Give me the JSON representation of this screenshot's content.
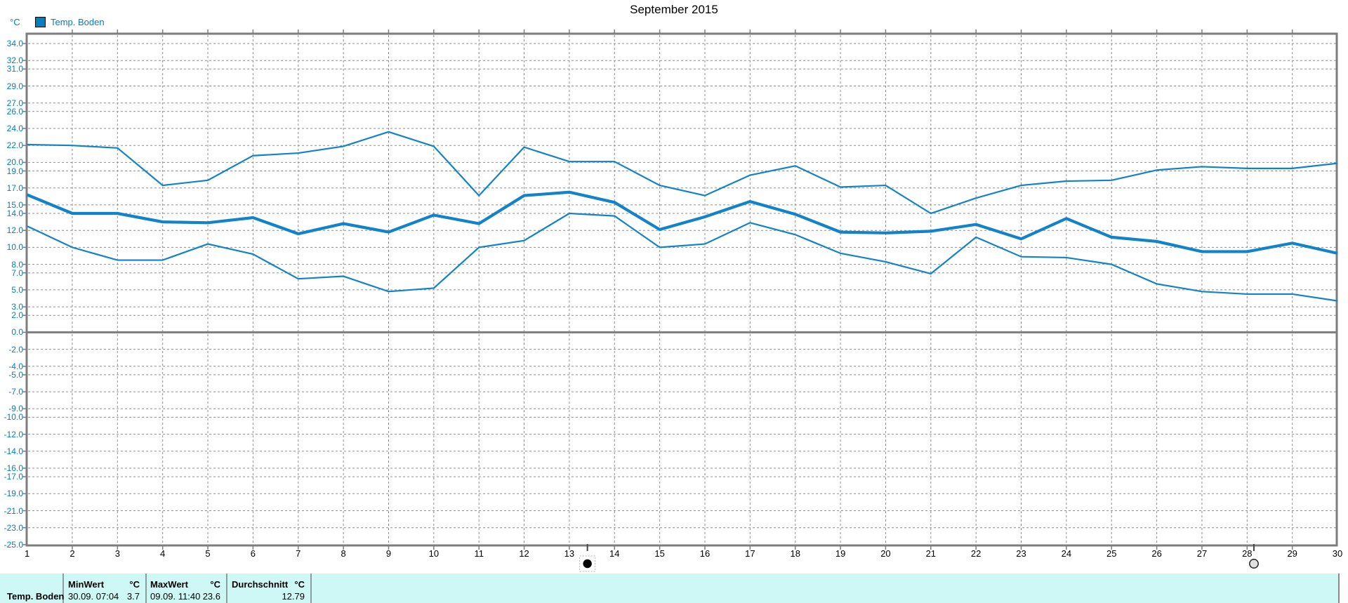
{
  "title": "September 2015",
  "legend": {
    "label": "Temp. Boden",
    "color": "#0080c0"
  },
  "y_axis": {
    "unit": "°C",
    "labels": [
      "34.0",
      "32.0",
      "31.0",
      "29.0",
      "27.0",
      "26.0",
      "24.0",
      "22.0",
      "20.0",
      "19.0",
      "17.0",
      "15.0",
      "14.0",
      "12.0",
      "10.0",
      "8.0",
      "7.0",
      "5.0",
      "3.0",
      "2.0",
      "0.0",
      "-2.0",
      "-4.0",
      "-5.0",
      "-7.0",
      "-9.0",
      "-10.0",
      "-12.0",
      "-14.0",
      "-16.0",
      "-17.0",
      "-19.0",
      "-21.0",
      "-23.0",
      "-25.0"
    ]
  },
  "x_axis": {
    "labels": [
      "1",
      "2",
      "3",
      "4",
      "5",
      "6",
      "7",
      "8",
      "9",
      "10",
      "11",
      "12",
      "13",
      "14",
      "15",
      "16",
      "17",
      "18",
      "19",
      "20",
      "21",
      "22",
      "23",
      "24",
      "25",
      "26",
      "27",
      "28",
      "29",
      "30"
    ]
  },
  "chart_data": {
    "type": "line",
    "title": "September 2015",
    "ylabel": "°C",
    "xlim": [
      1,
      30
    ],
    "ylim": [
      -25,
      35.2
    ],
    "grid": true,
    "x": [
      1,
      2,
      3,
      4,
      5,
      6,
      7,
      8,
      9,
      10,
      11,
      12,
      13,
      14,
      15,
      16,
      17,
      18,
      19,
      20,
      21,
      22,
      23,
      24,
      25,
      26,
      27,
      28,
      29,
      30
    ],
    "series": [
      {
        "id": "daily-max",
        "thick": false,
        "values": [
          22.1,
          22.0,
          21.7,
          17.3,
          17.9,
          20.8,
          21.1,
          21.9,
          23.6,
          21.9,
          16.1,
          21.8,
          20.1,
          20.1,
          17.3,
          16.1,
          18.5,
          19.6,
          17.1,
          17.3,
          14.0,
          15.8,
          17.3,
          17.8,
          17.9,
          19.1,
          19.5,
          19.3,
          19.3,
          19.9
        ]
      },
      {
        "id": "daily-average",
        "thick": true,
        "values": [
          16.2,
          14.0,
          14.0,
          13.0,
          12.9,
          13.5,
          11.6,
          12.8,
          11.8,
          13.8,
          12.8,
          16.1,
          16.5,
          15.3,
          12.1,
          13.6,
          15.4,
          13.9,
          11.8,
          11.7,
          11.9,
          12.7,
          11.0,
          13.4,
          11.2,
          10.7,
          9.5,
          9.5,
          10.5,
          9.3
        ]
      },
      {
        "id": "daily-min",
        "thick": false,
        "values": [
          12.5,
          10.0,
          8.5,
          8.5,
          10.4,
          9.2,
          6.3,
          6.6,
          4.8,
          5.2,
          10.0,
          10.8,
          14.0,
          13.7,
          10.0,
          10.4,
          12.9,
          11.5,
          9.3,
          8.3,
          6.9,
          11.2,
          8.9,
          8.8,
          8.0,
          5.7,
          4.8,
          4.5,
          4.5,
          3.7
        ]
      }
    ],
    "line_color": "#1283c8",
    "moon_markers": [
      {
        "day": 13.4,
        "phase": "new-moon"
      },
      {
        "day": 28.15,
        "phase": "full-moon"
      }
    ]
  },
  "summary_table": {
    "row_label": "Temp. Boden",
    "min": {
      "header": "MinWert",
      "unit": "°C",
      "datetime": "30.09.  07:04",
      "value": "3.7"
    },
    "max": {
      "header": "MaxWert",
      "unit": "°C",
      "datetime": "09.09.  11:40",
      "value": "23.6"
    },
    "avg": {
      "header": "Durchschnitt",
      "unit": "°C",
      "value": "12.79"
    }
  },
  "colors": {
    "axis_text": "#0080c0",
    "line": "#1283c8",
    "grid": "#8f8f8f",
    "frame": "#7d7d7d",
    "table_bg": "#cdf8f6"
  }
}
